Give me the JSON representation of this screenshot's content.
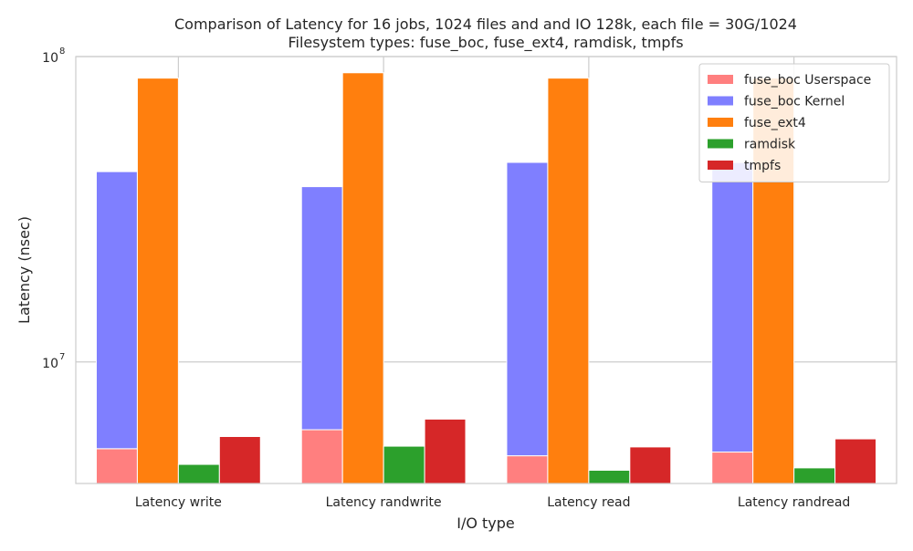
{
  "chart_data": {
    "type": "bar",
    "title_lines": [
      "Comparison of Latency for 16 jobs, 1024 files and  and IO 128k, each file = 30G/1024",
      "Filesystem types: fuse_boc, fuse_ext4, ramdisk, tmpfs"
    ],
    "xlabel": "I/O type",
    "ylabel": "Latency (nsec)",
    "yscale": "log",
    "ylim": [
      4000000,
      100000000
    ],
    "yticks": [
      {
        "value": 10000000,
        "base": "10",
        "exp": "7"
      },
      {
        "value": 100000000,
        "base": "10",
        "exp": "8"
      }
    ],
    "grid": true,
    "legend_position": "top-right",
    "categories": [
      "Latency write",
      "Latency randwrite",
      "Latency read",
      "Latency randread"
    ],
    "series": [
      {
        "name": "fuse_boc Userspace",
        "color": "#ff7f7f",
        "slot": 0,
        "values": [
          5200000,
          6000000,
          4930000,
          5070000
        ]
      },
      {
        "name": "fuse_boc Kernel",
        "color": "#7f7fff",
        "slot": 0,
        "stack_on": "fuse_boc Userspace",
        "values": [
          36800000,
          31500000,
          40100000,
          39900000
        ]
      },
      {
        "name": "fuse_ext4",
        "color": "#ff7f0e",
        "slot": 1,
        "values": [
          85000000,
          88500000,
          85000000,
          85000000
        ]
      },
      {
        "name": "ramdisk",
        "color": "#2ca02c",
        "slot": 2,
        "values": [
          4620000,
          5300000,
          4420000,
          4500000
        ]
      },
      {
        "name": "tmpfs",
        "color": "#d62728",
        "slot": 3,
        "values": [
          5700000,
          6500000,
          5270000,
          5600000
        ]
      }
    ]
  }
}
